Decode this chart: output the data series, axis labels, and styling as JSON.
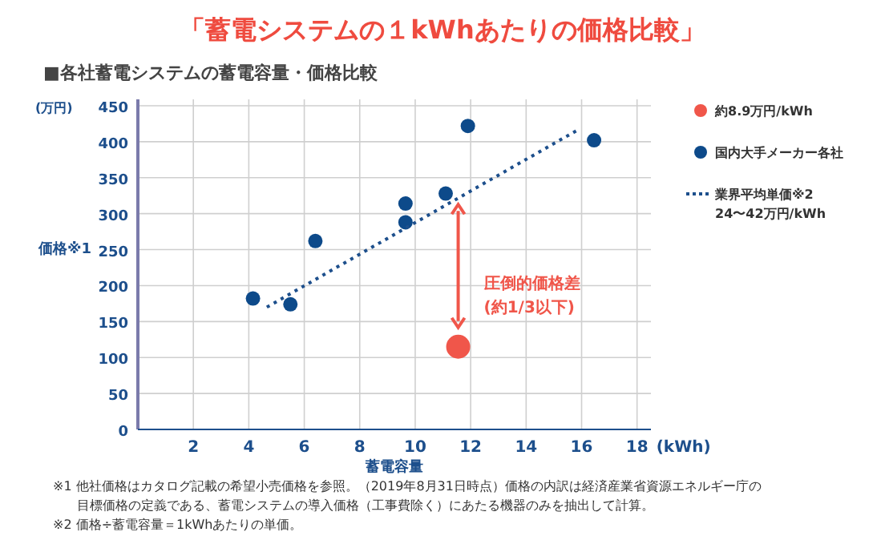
{
  "chart_data": {
    "type": "scatter",
    "title": "「蓄電システムの１kWhあたりの価格比較」",
    "subtitle": "■各社蓄電システムの蓄電容量・価格比較",
    "xlabel": "蓄電容量",
    "ylabel": "価格※1",
    "annotations": [
      "(万円)",
      "(kWh)",
      {
        "text": "圧倒的価格差\n(約1/3以下)",
        "x": 11.55,
        "y": 115
      },
      "※1 他社価格はカタログ記載の希望小売価格を参照。（2019年8月31日時点）価格の内訳は経済産業省資源エネルギー庁の",
      "目標価格の定義である、蓄電システムの導入価格（工事費除く）にあたる機器のみを抽出して計算。",
      "※2 価格÷蓄電容量＝1kWhあたりの単価。"
    ],
    "series": [
      {
        "name": "約8.9万円/kWh",
        "color": "#f0564a",
        "x": [
          11.55
        ],
        "values": [
          115
        ]
      },
      {
        "name": "国内大手メーカー各社",
        "color": "#0d4a8a",
        "x": [
          4.15,
          5.5,
          6.4,
          9.65,
          9.65,
          11.1,
          11.9,
          16.45
        ],
        "values": [
          182,
          174,
          262,
          314,
          288,
          328,
          422,
          402
        ]
      },
      {
        "name": "業界平均単価※2\n24〜42万円/kWh",
        "type": "line",
        "line_style": "dotted",
        "color": "#1d4f8c",
        "x": [
          4.65,
          15.8
        ],
        "values": [
          170,
          415
        ]
      }
    ],
    "xlim": [
      0,
      18.5
    ],
    "ylim": [
      0,
      450
    ],
    "xticks": [
      2,
      4,
      6,
      8,
      10,
      12,
      14,
      16,
      18
    ],
    "yticks": [
      0,
      50,
      100,
      150,
      200,
      250,
      300,
      350,
      400,
      450
    ],
    "grid": true,
    "legend": "right"
  }
}
